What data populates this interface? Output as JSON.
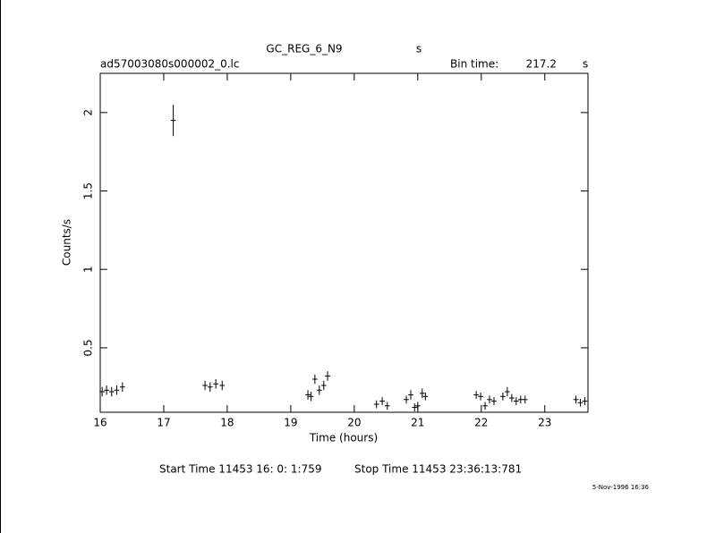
{
  "chart_data": {
    "type": "scatter",
    "title": "GC_REG_6_N9",
    "title_suffix": "s",
    "subtitle": "ad57003080s000002_0.lc",
    "bin_time_label": "Bin time:",
    "bin_time": 217.2,
    "bin_time_unit": "s",
    "xlabel": "Time (hours)",
    "ylabel": "Counts/s",
    "start_time": "Start Time 11453 16: 0: 1:759",
    "stop_time": "Stop Time 11453 23:36:13:781",
    "timestamp": "5-Nov-1996 16:36",
    "color": "#000000",
    "x": [
      16.03,
      16.1,
      16.18,
      16.26,
      16.35,
      17.15,
      17.65,
      17.73,
      17.82,
      17.92,
      19.27,
      19.32,
      19.38,
      19.45,
      19.52,
      19.58,
      20.35,
      20.44,
      20.52,
      20.82,
      20.89,
      20.95,
      21.0,
      21.07,
      21.12,
      21.92,
      21.99,
      22.06,
      22.13,
      22.2,
      22.34,
      22.41,
      22.48,
      22.55,
      22.62,
      22.69,
      23.49,
      23.56,
      23.63
    ],
    "values": [
      0.22,
      0.23,
      0.22,
      0.23,
      0.25,
      1.95,
      0.26,
      0.25,
      0.27,
      0.26,
      0.2,
      0.19,
      0.3,
      0.23,
      0.26,
      0.32,
      0.14,
      0.16,
      0.13,
      0.17,
      0.2,
      0.12,
      0.13,
      0.21,
      0.19,
      0.2,
      0.19,
      0.13,
      0.17,
      0.16,
      0.19,
      0.22,
      0.18,
      0.16,
      0.17,
      0.17,
      0.17,
      0.15,
      0.16
    ],
    "yerr": [
      0.03,
      0.03,
      0.03,
      0.03,
      0.03,
      0.1,
      0.03,
      0.03,
      0.03,
      0.03,
      0.03,
      0.03,
      0.03,
      0.03,
      0.03,
      0.03,
      0.025,
      0.025,
      0.025,
      0.025,
      0.03,
      0.025,
      0.025,
      0.03,
      0.025,
      0.025,
      0.025,
      0.025,
      0.025,
      0.025,
      0.025,
      0.03,
      0.025,
      0.025,
      0.025,
      0.025,
      0.025,
      0.025,
      0.025
    ],
    "xerr": 0.04,
    "xlim": [
      16,
      23.68
    ],
    "ylim": [
      0.089,
      2.25
    ],
    "xticks": [
      16,
      17,
      18,
      19,
      20,
      21,
      22,
      23
    ],
    "yticks": [
      0.5,
      1,
      1.5,
      2
    ],
    "grid": false
  }
}
